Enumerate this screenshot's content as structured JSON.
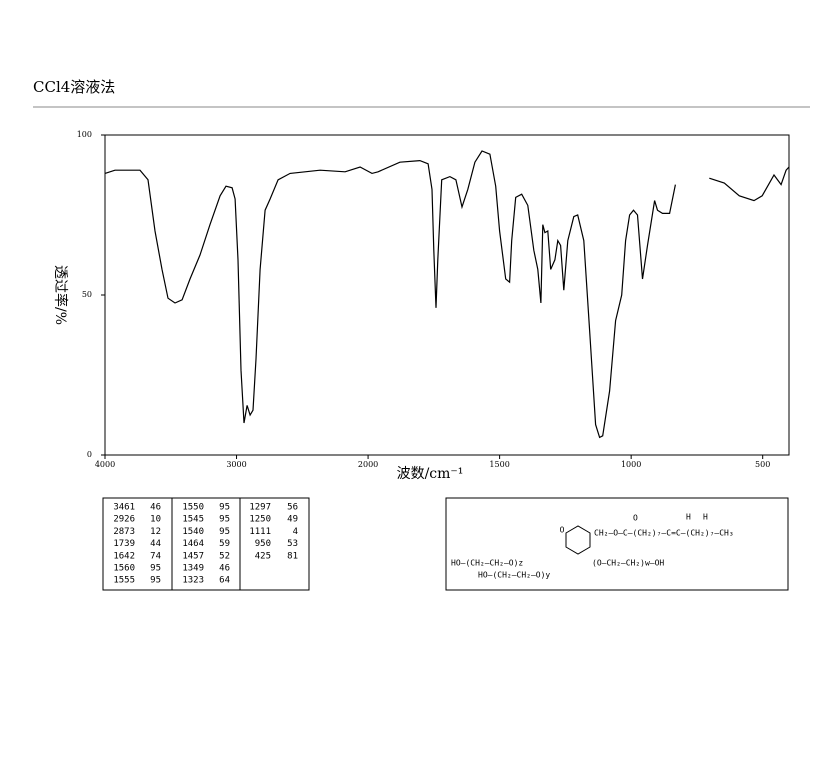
{
  "chart_data": {
    "type": "line",
    "title": "CCl4溶液法",
    "xlabel": "波数/cm⁻¹",
    "ylabel": "透过率/%",
    "xlim": [
      4000,
      400
    ],
    "xticks": [
      4000,
      3000,
      2000,
      1500,
      1000,
      500
    ],
    "x_scale_change": 2000,
    "ylim": [
      0,
      100
    ],
    "yticks": [
      0,
      50,
      100
    ],
    "color": "#000000",
    "x": [
      4000,
      3924,
      3734,
      3673,
      3620,
      3567,
      3521,
      3468,
      3414,
      3354,
      3278,
      3202,
      3125,
      3080,
      3034,
      3011,
      2989,
      2966,
      2943,
      2920,
      2897,
      2875,
      2852,
      2821,
      2783,
      2745,
      2684,
      2593,
      2365,
      2175,
      2061,
      1985,
      1962,
      1879,
      1803,
      1772,
      1757,
      1750,
      1742,
      1735,
      1720,
      1689,
      1666,
      1643,
      1621,
      1594,
      1567,
      1537,
      1515,
      1500,
      1477,
      1462,
      1454,
      1439,
      1416,
      1393,
      1370,
      1355,
      1343,
      1336,
      1328,
      1317,
      1306,
      1290,
      1279,
      1268,
      1256,
      1241,
      1218,
      1203,
      1180,
      1158,
      1135,
      1120,
      1108,
      1082,
      1059,
      1036,
      1021,
      1006,
      991,
      976,
      957,
      938,
      911,
      900,
      881,
      854,
      832,
      null,
      703,
      646,
      589,
      533,
      502,
      457,
      430,
      411,
      400
    ],
    "values": [
      88,
      89,
      89,
      86,
      70,
      58,
      49,
      47.5,
      48.5,
      55,
      62.5,
      72,
      81,
      84,
      83.5,
      80,
      61,
      26.5,
      10,
      15.5,
      12.5,
      14,
      30,
      58,
      76.5,
      80,
      86,
      88,
      89,
      88.5,
      90,
      88,
      88.5,
      91.5,
      92,
      91,
      83,
      64,
      46,
      61,
      86,
      87,
      86,
      77.5,
      83,
      91.5,
      95,
      94,
      84,
      70,
      55,
      54,
      67,
      80.5,
      81.5,
      78,
      64,
      58,
      47.5,
      72,
      69.5,
      70,
      58,
      61,
      67,
      65.5,
      51.5,
      67,
      74.5,
      75,
      67,
      39,
      9.5,
      5.5,
      6,
      20,
      42,
      50,
      67,
      75,
      76.5,
      75,
      55,
      65.5,
      79.5,
      76.5,
      75.5,
      75.5,
      84.5,
      null,
      86.5,
      85,
      81,
      79.5,
      81,
      87.5,
      84.5,
      89,
      90
    ]
  },
  "peak_table": {
    "columns": [
      [
        [
          3461,
          46
        ],
        [
          2926,
          10
        ],
        [
          2873,
          12
        ],
        [
          1739,
          44
        ],
        [
          1642,
          74
        ],
        [
          1560,
          95
        ],
        [
          1555,
          95
        ]
      ],
      [
        [
          1550,
          95
        ],
        [
          1545,
          95
        ],
        [
          1540,
          95
        ],
        [
          1464,
          59
        ],
        [
          1457,
          52
        ],
        [
          1349,
          46
        ],
        [
          1323,
          64
        ]
      ],
      [
        [
          1297,
          56
        ],
        [
          1250,
          49
        ],
        [
          1111,
          4
        ],
        [
          950,
          53
        ],
        [
          425,
          81
        ]
      ]
    ]
  },
  "structure": {
    "top": "CH₂—O—C—(CH₂)₇—C=C—(CH₂)₇—CH₃",
    "carbonyl": "O",
    "h1": "H",
    "h2": "H",
    "left": "HO—(CH₂—CH₂—O)z",
    "right": "(O—CH₂—CH₂)w—OH",
    "bottom": "HO—(CH₂—CH₂—O)y"
  }
}
